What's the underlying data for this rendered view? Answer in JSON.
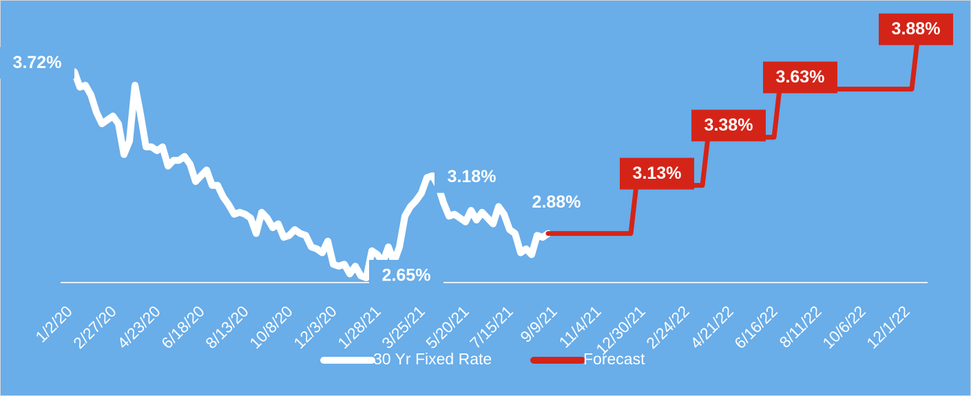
{
  "chart_data": {
    "type": "line",
    "xlim": [
      0,
      153
    ],
    "ylim": [
      2.6,
      4.0
    ],
    "xticks": [
      {
        "value": 0,
        "label": "1/2/20"
      },
      {
        "value": 8,
        "label": "2/27/20"
      },
      {
        "value": 16,
        "label": "4/23/20"
      },
      {
        "value": 24,
        "label": "6/18/20"
      },
      {
        "value": 32,
        "label": "8/13/20"
      },
      {
        "value": 40,
        "label": "10/8/20"
      },
      {
        "value": 48,
        "label": "12/3/20"
      },
      {
        "value": 56,
        "label": "1/28/21"
      },
      {
        "value": 64,
        "label": "3/25/21"
      },
      {
        "value": 72,
        "label": "5/20/21"
      },
      {
        "value": 80,
        "label": "7/15/21"
      },
      {
        "value": 88,
        "label": "9/9/21"
      },
      {
        "value": 96,
        "label": "11/4/21"
      },
      {
        "value": 104,
        "label": "12/30/21"
      },
      {
        "value": 112,
        "label": "2/24/22"
      },
      {
        "value": 120,
        "label": "4/21/22"
      },
      {
        "value": 128,
        "label": "6/16/22"
      },
      {
        "value": 136,
        "label": "8/11/22"
      },
      {
        "value": 144,
        "label": "10/6/22"
      },
      {
        "value": 152,
        "label": "12/1/22"
      }
    ],
    "series": [
      {
        "name": "30 Yr Fixed Rate",
        "color": "#ffffff",
        "x": [
          0,
          1,
          2,
          3,
          4,
          5,
          6,
          7,
          8,
          9,
          10,
          11,
          12,
          13,
          14,
          15,
          16,
          17,
          18,
          19,
          20,
          21,
          22,
          23,
          24,
          25,
          26,
          27,
          28,
          29,
          30,
          31,
          32,
          33,
          34,
          35,
          36,
          37,
          38,
          39,
          40,
          41,
          42,
          43,
          44,
          45,
          46,
          47,
          48,
          49,
          50,
          51,
          52,
          53,
          54,
          55,
          56,
          57,
          58,
          59,
          60,
          61,
          62,
          63,
          64,
          65,
          66,
          67,
          68,
          69,
          70,
          71,
          72,
          73,
          74,
          75,
          76,
          77,
          78,
          79,
          80,
          81,
          82,
          83,
          84,
          85,
          86
        ],
        "values": [
          3.72,
          3.64,
          3.65,
          3.6,
          3.51,
          3.45,
          3.47,
          3.49,
          3.45,
          3.29,
          3.36,
          3.65,
          3.5,
          3.33,
          3.33,
          3.31,
          3.33,
          3.23,
          3.26,
          3.26,
          3.28,
          3.24,
          3.15,
          3.18,
          3.21,
          3.13,
          3.13,
          3.07,
          3.03,
          2.98,
          2.99,
          2.98,
          2.96,
          2.88,
          2.99,
          2.96,
          2.91,
          2.93,
          2.86,
          2.87,
          2.9,
          2.88,
          2.87,
          2.81,
          2.8,
          2.78,
          2.84,
          2.72,
          2.71,
          2.72,
          2.67,
          2.71,
          2.66,
          2.65,
          2.79,
          2.77,
          2.73,
          2.81,
          2.73,
          2.81,
          2.97,
          3.02,
          3.05,
          3.09,
          3.17,
          3.18,
          3.13,
          3.04,
          2.97,
          2.98,
          2.96,
          2.94,
          3.0,
          2.95,
          2.99,
          2.96,
          2.93,
          3.02,
          2.98,
          2.9,
          2.88,
          2.78,
          2.8,
          2.77,
          2.87,
          2.86,
          2.88
        ],
        "value_labels": [
          "3.72%",
          null,
          null,
          null,
          null,
          null,
          null,
          null,
          null,
          null,
          null,
          null,
          null,
          null,
          null,
          null,
          null,
          null,
          null,
          null,
          null,
          null,
          null,
          null,
          null,
          null,
          null,
          null,
          null,
          null,
          null,
          null,
          null,
          null,
          null,
          null,
          null,
          null,
          null,
          null,
          null,
          null,
          null,
          null,
          null,
          null,
          null,
          null,
          null,
          null,
          null,
          null,
          null,
          "2.65%",
          null,
          null,
          null,
          null,
          null,
          null,
          null,
          null,
          null,
          null,
          null,
          "3.18%",
          null,
          null,
          null,
          null,
          null,
          null,
          null,
          null,
          null,
          null,
          null,
          null,
          null,
          null,
          null,
          null,
          null,
          null,
          null,
          null,
          "2.88%"
        ]
      },
      {
        "name": "Forecast",
        "color": "#d42418",
        "x": [
          86,
          101,
          102,
          114,
          115,
          127,
          128,
          152,
          153
        ],
        "values": [
          2.88,
          2.88,
          3.13,
          3.13,
          3.38,
          3.38,
          3.63,
          3.63,
          3.88
        ],
        "value_labels": [
          null,
          null,
          "3.13%",
          null,
          "3.38%",
          null,
          "3.63%",
          null,
          "3.88%"
        ]
      }
    ]
  }
}
